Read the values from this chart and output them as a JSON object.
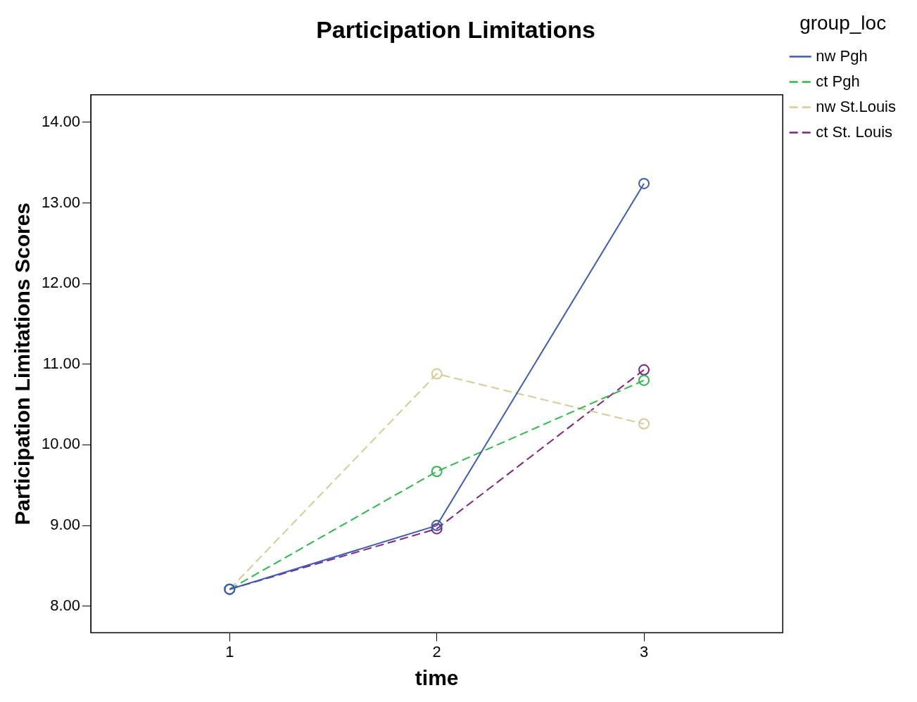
{
  "chart_data": {
    "type": "line",
    "title": "Participation Limitations",
    "xlabel": "time",
    "ylabel": "Participation Limitations Scores",
    "legend_title": "group_loc",
    "x": [
      1,
      2,
      3
    ],
    "xlim": [
      0.33,
      3.67
    ],
    "xticks": [
      1,
      2,
      3
    ],
    "ylim": [
      7.67,
      14.34
    ],
    "yticks": [
      {
        "value": 8,
        "label": "8.00"
      },
      {
        "value": 9,
        "label": "9.00"
      },
      {
        "value": 10,
        "label": "10.00"
      },
      {
        "value": 11,
        "label": "11.00"
      },
      {
        "value": 12,
        "label": "12.00"
      },
      {
        "value": 13,
        "label": "13.00"
      },
      {
        "value": 14,
        "label": "14.00"
      }
    ],
    "series": [
      {
        "name": "nw Pgh",
        "color": "#3d5bb5",
        "values": [
          8.21,
          9.0,
          13.24
        ],
        "line_style": "solid"
      },
      {
        "name": "ct Pgh",
        "color": "#2db84a",
        "values": [
          8.21,
          9.67,
          10.8
        ],
        "line_style": "dashed"
      },
      {
        "name": "nw St.Louis",
        "color": "#d4cc94",
        "values": [
          8.21,
          10.88,
          10.26
        ],
        "line_style": "dashed"
      },
      {
        "name": "ct St. Louis",
        "color": "#7d267f",
        "values": [
          8.21,
          8.96,
          10.93
        ],
        "line_style": "dashed"
      }
    ],
    "marker": "circle",
    "grid": false,
    "legend": "top right"
  }
}
